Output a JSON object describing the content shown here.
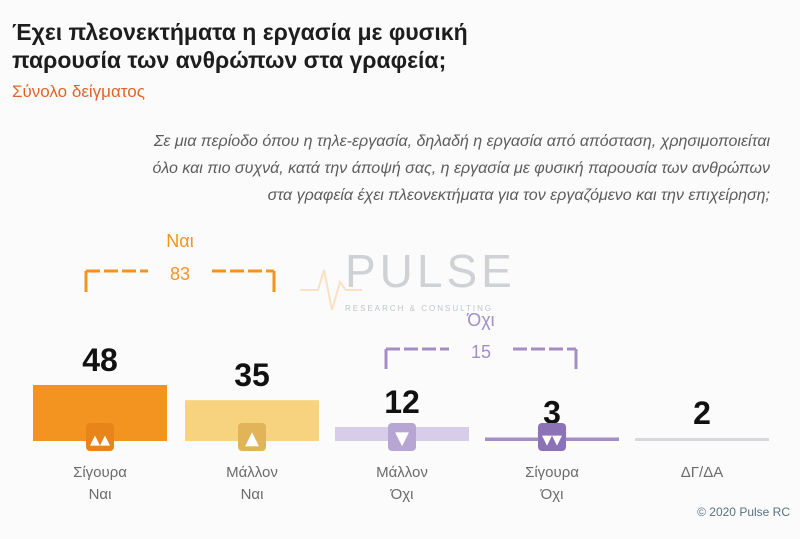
{
  "header": {
    "title_line1": "Έχει πλεονεκτήματα η εργασία με φυσική",
    "title_line2": "παρουσία των ανθρώπων στα γραφεία;",
    "subtitle": "Σύνολο δείγματος"
  },
  "question": {
    "line1": "Σε μια περίοδο όπου η τηλε-εργασία, δηλαδή η εργασία από απόσταση, χρησιμοποιείται",
    "line2": "όλο και πιο συχνά, κατά την άποψή σας, η εργασία με φυσική παρουσία των ανθρώπων",
    "line3": "στα γραφεία έχει πλεονεκτήματα για τον εργαζόμενο και την επιχείρηση;"
  },
  "watermark": {
    "text": "PULSE",
    "sub": "RESEARCH & CONSULTING"
  },
  "copyright": "© 2020 Pulse RC",
  "colors": {
    "orange": "#f39420",
    "orange_light": "#f8d37f",
    "purple": "#a48ec6",
    "purple_light": "#d8cde8",
    "grey": "#d8d8dc"
  },
  "chart_data": {
    "type": "bar",
    "categories": [
      [
        "Σίγουρα",
        "Ναι"
      ],
      [
        "Μάλλον",
        "Ναι"
      ],
      [
        "Μάλλον",
        "Όχι"
      ],
      [
        "Σίγουρα",
        "Όχι"
      ],
      [
        "ΔΓ/ΔΑ"
      ]
    ],
    "values": [
      48,
      35,
      12,
      3,
      2
    ],
    "icons": [
      "double-thumbs-up-icon",
      "thumbs-up-icon",
      "thumbs-down-icon",
      "double-thumbs-down-icon",
      ""
    ],
    "groups": [
      {
        "label": "Ναι",
        "value": 83
      },
      {
        "label": "Όχι",
        "value": 15
      }
    ]
  }
}
